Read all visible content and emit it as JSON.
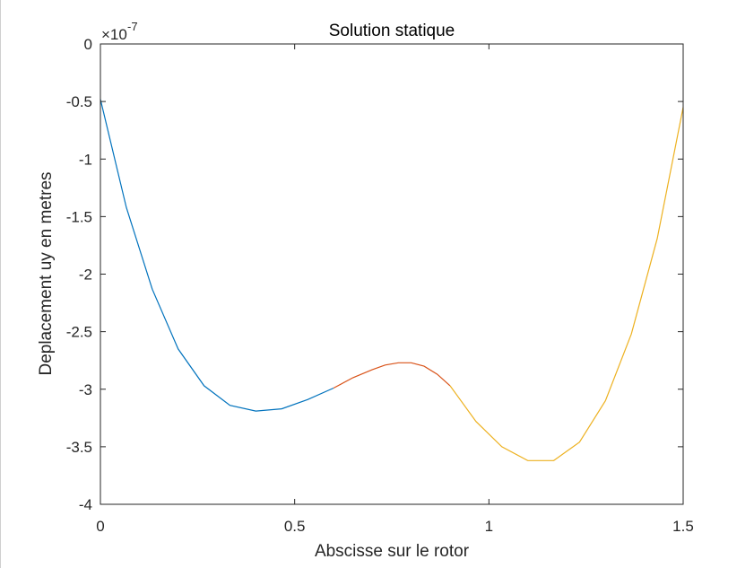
{
  "chart_data": {
    "type": "line",
    "title": "Solution statique",
    "xlabel": "Abscisse sur le rotor",
    "ylabel": "Deplacement uy en metres",
    "exponent_label": "×10",
    "exponent_power": "-7",
    "xlim": [
      0,
      1.5
    ],
    "ylim": [
      -4,
      0
    ],
    "xticks": [
      0,
      0.5,
      1,
      1.5
    ],
    "xtick_labels": [
      "0",
      "0.5",
      "1",
      "1.5"
    ],
    "yticks": [
      0,
      -0.5,
      -1,
      -1.5,
      -2,
      -2.5,
      -3,
      -3.5,
      -4
    ],
    "ytick_labels": [
      "0",
      "-0.5",
      "-1",
      "-1.5",
      "-2",
      "-2.5",
      "-3",
      "-3.5",
      "-4"
    ],
    "grid": false,
    "box": true,
    "series": [
      {
        "color": "#0072BD",
        "x": [
          0,
          0.0667,
          0.1333,
          0.2,
          0.2667,
          0.3333,
          0.4,
          0.4667,
          0.5333,
          0.6
        ],
        "y": [
          -0.48,
          -1.42,
          -2.13,
          -2.65,
          -2.97,
          -3.14,
          -3.19,
          -3.17,
          -3.09,
          -2.99
        ]
      },
      {
        "color": "#D95319",
        "x": [
          0.6,
          0.65,
          0.7,
          0.733,
          0.767,
          0.8,
          0.833,
          0.867,
          0.9
        ],
        "y": [
          -2.99,
          -2.9,
          -2.83,
          -2.79,
          -2.77,
          -2.77,
          -2.8,
          -2.87,
          -2.97
        ]
      },
      {
        "color": "#EDB120",
        "x": [
          0.9,
          0.9667,
          1.0333,
          1.1,
          1.1667,
          1.2333,
          1.3,
          1.3667,
          1.4333,
          1.5
        ],
        "y": [
          -2.97,
          -3.28,
          -3.5,
          -3.62,
          -3.62,
          -3.46,
          -3.1,
          -2.52,
          -1.69,
          -0.55
        ]
      }
    ]
  }
}
